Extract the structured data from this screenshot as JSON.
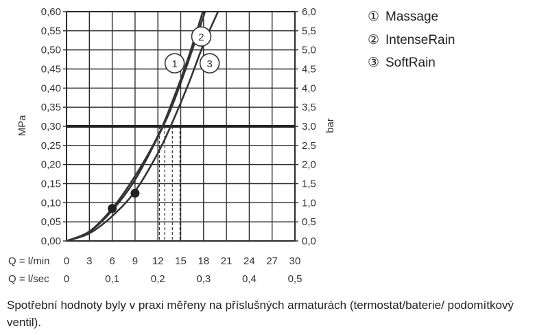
{
  "chart_data": {
    "type": "line",
    "legend": [
      {
        "marker": "①",
        "label": "Massage"
      },
      {
        "marker": "②",
        "label": "IntenseRain"
      },
      {
        "marker": "③",
        "label": "SoftRain"
      }
    ],
    "y_left": {
      "label": "MPa",
      "range": [
        0,
        0.6
      ],
      "ticks": [
        "0,00",
        "0,05",
        "0,10",
        "0,15",
        "0,20",
        "0,25",
        "0,30",
        "0,35",
        "0,40",
        "0,45",
        "0,50",
        "0,55",
        "0,60"
      ]
    },
    "y_right": {
      "label": "bar",
      "range": [
        0,
        6
      ],
      "ticks": [
        "0,0",
        "0,5",
        "1,0",
        "1,5",
        "2,0",
        "2,5",
        "3,0",
        "3,5",
        "4,0",
        "4,5",
        "5,0",
        "5,5",
        "6,0"
      ]
    },
    "x_lmin": {
      "label": "Q = l/min",
      "range": [
        0,
        30
      ],
      "ticks": [
        "0",
        "3",
        "6",
        "9",
        "12",
        "15",
        "18",
        "21",
        "24",
        "27",
        "30"
      ]
    },
    "x_lsec": {
      "label": "Q = l/sec",
      "ticks": [
        {
          "v": 0,
          "t": "0"
        },
        {
          "v": 6,
          "t": "0,1"
        },
        {
          "v": 12,
          "t": "0,2"
        },
        {
          "v": 18,
          "t": "0,3"
        },
        {
          "v": 24,
          "t": "0,4"
        },
        {
          "v": 30,
          "t": "0,5"
        }
      ]
    },
    "grid": true,
    "reference_line": {
      "y": 0.3
    },
    "series": [
      {
        "name": "1",
        "x": [
          0,
          3,
          6,
          9,
          12,
          14,
          16,
          17.9
        ],
        "y": [
          0,
          0.025,
          0.085,
          0.17,
          0.275,
          0.37,
          0.48,
          0.6
        ]
      },
      {
        "name": "2",
        "x": [
          0,
          3,
          6,
          9,
          12.2,
          14,
          16,
          18.2
        ],
        "y": [
          0,
          0.024,
          0.08,
          0.16,
          0.28,
          0.36,
          0.47,
          0.6
        ]
      },
      {
        "name": "3",
        "x": [
          0,
          3,
          6,
          9,
          12,
          14,
          16,
          18,
          19.9
        ],
        "y": [
          0,
          0.02,
          0.065,
          0.13,
          0.23,
          0.315,
          0.41,
          0.515,
          0.6
        ]
      }
    ],
    "markers": [
      {
        "x": 6,
        "y": 0.085
      },
      {
        "x": 9,
        "y": 0.125
      }
    ],
    "drop_lines_x": [
      12.2,
      12.9,
      13.9,
      14.9
    ],
    "curve_labels": [
      {
        "text": "1",
        "x": 14.2,
        "y": 0.465
      },
      {
        "text": "2",
        "x": 17.7,
        "y": 0.535
      },
      {
        "text": "3",
        "x": 18.8,
        "y": 0.465
      }
    ]
  },
  "footnote": "Spotřební hodnoty byly v praxi měřeny na příslušných armaturách (termostat/baterie/ podomítkový ventil)."
}
